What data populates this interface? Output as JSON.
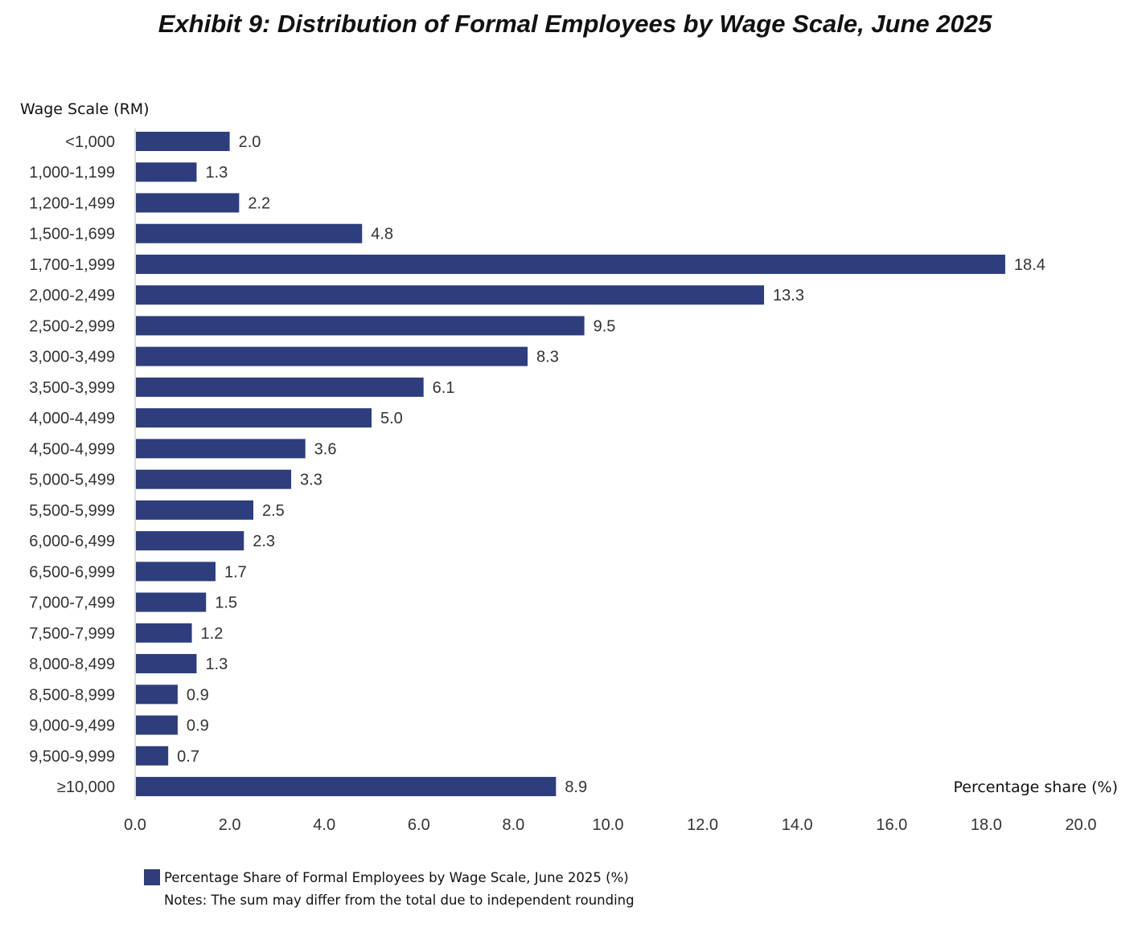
{
  "chart_data": {
    "type": "bar",
    "orientation": "horizontal",
    "title": "Exhibit 9: Distribution of Formal Employees by Wage Scale, June 2025",
    "ylabel": "Wage Scale (RM)",
    "xlabel": "Percentage share (%)",
    "xlim": [
      0,
      20
    ],
    "xticks": [
      "0.0",
      "2.0",
      "4.0",
      "6.0",
      "8.0",
      "10.0",
      "12.0",
      "14.0",
      "16.0",
      "18.0",
      "20.0"
    ],
    "grid": false,
    "categories": [
      "<1,000",
      "1,000-1,199",
      "1,200-1,499",
      "1,500-1,699",
      "1,700-1,999",
      "2,000-2,499",
      "2,500-2,999",
      "3,000-3,499",
      "3,500-3,999",
      "4,000-4,499",
      "4,500-4,999",
      "5,000-5,499",
      "5,500-5,999",
      "6,000-6,499",
      "6,500-6,999",
      "7,000-7,499",
      "7,500-7,999",
      "8,000-8,499",
      "8,500-8,999",
      "9,000-9,499",
      "9,500-9,999",
      "≥10,000"
    ],
    "values": [
      2.0,
      1.3,
      2.2,
      4.8,
      18.4,
      13.3,
      9.5,
      8.3,
      6.1,
      5.0,
      3.6,
      3.3,
      2.5,
      2.3,
      1.7,
      1.5,
      1.2,
      1.3,
      0.9,
      0.9,
      0.7,
      8.9
    ],
    "value_labels": [
      "2.0",
      "1.3",
      "2.2",
      "4.8",
      "18.4",
      "13.3",
      "9.5",
      "8.3",
      "6.1",
      "5.0",
      "3.6",
      "3.3",
      "2.5",
      "2.3",
      "1.7",
      "1.5",
      "1.2",
      "1.3",
      "0.9",
      "0.9",
      "0.7",
      "8.9"
    ],
    "series_name": "Percentage Share of Formal Employees by Wage Scale, June 2025 (%)",
    "legend_placement": "bottom-left",
    "note": "Notes: The sum may differ from the total due to independent rounding",
    "bar_color": "#2e3d7c",
    "axis_color": "#d0d0d0"
  }
}
